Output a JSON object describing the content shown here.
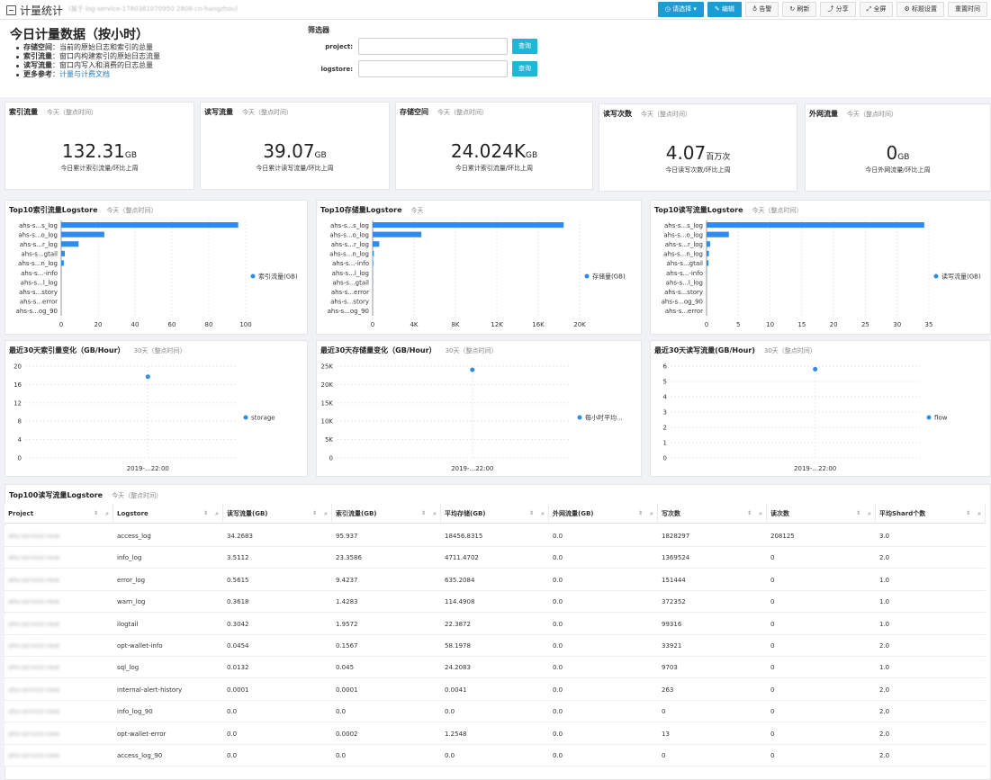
{
  "app": {
    "title": "计量统计",
    "subtitle": "(属于 log-service-1780381070950 2808-cn-hangzhou)"
  },
  "toolbar": {
    "select": "请选择 ▾",
    "edit": "编辑",
    "alert": "告警",
    "refresh": "刷新",
    "share": "分享",
    "fullscreen": "全屏",
    "title_settings": "标题设置",
    "reset_time": "重置时间"
  },
  "header": {
    "title": "今日计量数据（按小时）",
    "items": [
      {
        "k": "存储空间",
        "v": "：当前的原始日志和索引的总量"
      },
      {
        "k": "索引流量",
        "v": "：窗口内构建索引的原始日志流量"
      },
      {
        "k": "读写流量",
        "v": "：窗口内写入和消费的日志总量"
      },
      {
        "k": "更多参考",
        "v": "："
      }
    ],
    "link": "计量与计费文档"
  },
  "filter": {
    "title": "筛选器",
    "project_label": "project:",
    "logstore_label": "logstore:",
    "query": "查询"
  },
  "kpis": [
    {
      "title": "索引流量",
      "range": "今天（整点时间）",
      "value": "132.31",
      "unit": "GB",
      "caption": "今日累计索引流量/环比上周"
    },
    {
      "title": "读写流量",
      "range": "今天（整点时间）",
      "value": "39.07",
      "unit": "GB",
      "caption": "今日累计读写流量/环比上周"
    },
    {
      "title": "存储空间",
      "range": "今天（整点时间）",
      "value": "24.024K",
      "unit": "GB",
      "caption": "今日累计索引流量/环比上周"
    },
    {
      "title": "读写次数",
      "range": "今天（整点时间）",
      "value": "4.07",
      "unit": "百万次",
      "caption": "今日读写次数/环比上周"
    },
    {
      "title": "外网流量",
      "range": "今天（整点时间）",
      "value": "0",
      "unit": "GB",
      "caption": "今日外网流量/环比上周"
    }
  ],
  "chart_data": [
    {
      "type": "bar",
      "title": "Top10索引流量Logstore",
      "range": "今天（整点时间）",
      "categories": [
        "ahs-s...s_log",
        "ahs-s...o_log",
        "ahs-s...r_log",
        "ahs-s...gtail",
        "ahs-s...n_log",
        "ahs-s...-info",
        "ahs-s...l_log",
        "ahs-s...story",
        "ahs-s...error",
        "ahs-s...og_90"
      ],
      "values": [
        95.937,
        23.3586,
        9.4237,
        1.9572,
        1.4283,
        0.1567,
        0.045,
        0.0001,
        0.0002,
        0
      ],
      "xticks": [
        0,
        20,
        40,
        60,
        80,
        100
      ],
      "xlim": [
        0,
        100
      ],
      "series_name": "索引流量(GB)"
    },
    {
      "type": "bar",
      "title": "Top10存储量Logstore",
      "range": "今天",
      "categories": [
        "ahs-s...s_log",
        "ahs-s...o_log",
        "ahs-s...r_log",
        "ahs-s...n_log",
        "ahs-s...-info",
        "ahs-s...l_log",
        "ahs-s...gtail",
        "ahs-s...error",
        "ahs-s...story",
        "ahs-s...og_90"
      ],
      "values": [
        18456.8315,
        4711.4702,
        635.2084,
        114.4908,
        58.1978,
        24.2083,
        22.3872,
        1.2548,
        0.0041,
        0
      ],
      "xticks": [
        "0",
        "4K",
        "8K",
        "12K",
        "16K",
        "20K"
      ],
      "xlim": [
        0,
        20000
      ],
      "series_name": "存储量(GB)"
    },
    {
      "type": "bar",
      "title": "Top10读写流量Logstore",
      "range": "今天（整点时间）",
      "categories": [
        "ahs-s...s_log",
        "ahs-s...o_log",
        "ahs-s...r_log",
        "ahs-s...n_log",
        "ahs-s...gtail",
        "ahs-s...-info",
        "ahs-s...l_log",
        "ahs-s...story",
        "ahs-s...og_90",
        "ahs-s...error"
      ],
      "values": [
        34.2683,
        3.5112,
        0.5615,
        0.3618,
        0.3042,
        0.0454,
        0.0132,
        0.0001,
        0,
        0
      ],
      "xticks": [
        0,
        5,
        10,
        15,
        20,
        25,
        30,
        35
      ],
      "xlim": [
        0,
        35
      ],
      "series_name": "读写流量(GB)"
    },
    {
      "type": "scatter",
      "title": "最近30天索引量变化（GB/Hour）",
      "range": "30天（整点时间）",
      "x": [
        "2019-...22:00"
      ],
      "y": [
        17.7
      ],
      "yticks": [
        "0",
        "4",
        "8",
        "12",
        "16",
        "20"
      ],
      "ylim": [
        0,
        20
      ],
      "series_name": "storage"
    },
    {
      "type": "scatter",
      "title": "最近30天存储量变化（GB/Hour）",
      "range": "30天（整点时间）",
      "x": [
        "2019-...22:00"
      ],
      "y": [
        24000
      ],
      "yticks": [
        "0",
        "5K",
        "10K",
        "15K",
        "20K",
        "25K"
      ],
      "ylim": [
        0,
        25000
      ],
      "series_name": "每小时平均..."
    },
    {
      "type": "scatter",
      "title": "最近30天读写流量(GB/Hour)",
      "range": "30天（整点时间）",
      "x": [
        "2019-...22:00"
      ],
      "y": [
        5.8
      ],
      "yticks": [
        "0",
        "1",
        "2",
        "3",
        "4",
        "5",
        "6"
      ],
      "ylim": [
        0,
        6
      ],
      "series_name": "flow"
    }
  ],
  "table": {
    "title": "Top100读写流量Logstore",
    "range": "今天（整点时间）",
    "columns": [
      "Project",
      "Logstore",
      "读写流量(GB)",
      "索引流量(GB)",
      "平均存储(GB)",
      "外网流量(GB)",
      "写次数",
      "读次数",
      "平均Shard个数"
    ],
    "rows": [
      [
        "ahs-service-new",
        "access_log",
        "34.2683",
        "95.937",
        "18456.8315",
        "0.0",
        "1828297",
        "208125",
        "3.0"
      ],
      [
        "ahs-service-new",
        "info_log",
        "3.5112",
        "23.3586",
        "4711.4702",
        "0.0",
        "1369524",
        "0",
        "2.0"
      ],
      [
        "ahs-service-new",
        "error_log",
        "0.5615",
        "9.4237",
        "635.2084",
        "0.0",
        "151444",
        "0",
        "1.0"
      ],
      [
        "ahs-service-new",
        "warn_log",
        "0.3618",
        "1.4283",
        "114.4908",
        "0.0",
        "372352",
        "0",
        "1.0"
      ],
      [
        "ahs-service-new",
        "ilogtail",
        "0.3042",
        "1.9572",
        "22.3872",
        "0.0",
        "99316",
        "0",
        "1.0"
      ],
      [
        "ahs-service-new",
        "opt-wallet-info",
        "0.0454",
        "0.1567",
        "58.1978",
        "0.0",
        "33921",
        "0",
        "2.0"
      ],
      [
        "ahs-service-new",
        "sql_log",
        "0.0132",
        "0.045",
        "24.2083",
        "0.0",
        "9703",
        "0",
        "1.0"
      ],
      [
        "ahs-service-new",
        "internal-alert-history",
        "0.0001",
        "0.0001",
        "0.0041",
        "0.0",
        "263",
        "0",
        "2.0"
      ],
      [
        "ahs-service-new",
        "info_log_90",
        "0.0",
        "0.0",
        "0.0",
        "0.0",
        "0",
        "0",
        "2.0"
      ],
      [
        "ahs-service-new",
        "opt-wallet-error",
        "0.0",
        "0.0002",
        "1.2548",
        "0.0",
        "13",
        "0",
        "2.0"
      ],
      [
        "ahs-service-new",
        "access_log_90",
        "0.0",
        "0.0",
        "0.0",
        "0.0",
        "0",
        "0",
        "2.0"
      ]
    ]
  },
  "colors": {
    "accent": "#1b9cd6",
    "bar": "#2d8cf0",
    "query": "#1fb6d8"
  }
}
